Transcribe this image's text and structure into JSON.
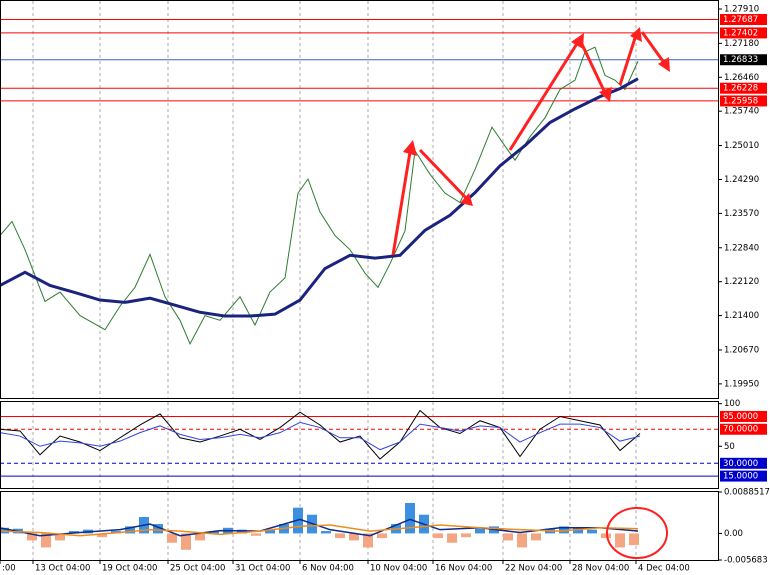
{
  "chart_data": [
    {
      "type": "line",
      "xlim": [
        0,
        718
      ],
      "ylim": [
        1.1965,
        1.2808
      ],
      "xticks": [
        {
          "value": 0,
          "label": ":00"
        },
        {
          "value": 33,
          "label": "13 Oct 04:00"
        },
        {
          "value": 100,
          "label": "19 Oct 04:00"
        },
        {
          "value": 168,
          "label": "25 Oct 04:00"
        },
        {
          "value": 233,
          "label": "31 Oct 04:00"
        },
        {
          "value": 300,
          "label": "6 Nov 04:00"
        },
        {
          "value": 368,
          "label": "10 Nov 04:00"
        },
        {
          "value": 433,
          "label": "16 Nov 04:00"
        },
        {
          "value": 503,
          "label": "22 Nov 04:00"
        },
        {
          "value": 570,
          "label": "28 Nov 04:00"
        },
        {
          "value": 636,
          "label": "4 Dec 04:00"
        }
      ],
      "yticks": [
        {
          "value": 1.2791,
          "label": "1.27910"
        },
        {
          "value": 1.2718,
          "label": "1.27180"
        },
        {
          "value": 1.2646,
          "label": "1.26460"
        },
        {
          "value": 1.2574,
          "label": "1.25740"
        },
        {
          "value": 1.2501,
          "label": "1.25010"
        },
        {
          "value": 1.2429,
          "label": "1.24290"
        },
        {
          "value": 1.2357,
          "label": "1.23570"
        },
        {
          "value": 1.2284,
          "label": "1.22840"
        },
        {
          "value": 1.2212,
          "label": "1.22120"
        },
        {
          "value": 1.214,
          "label": "1.21400"
        },
        {
          "value": 1.2067,
          "label": "1.20670"
        },
        {
          "value": 1.1995,
          "label": "1.19950"
        }
      ],
      "levels": [
        {
          "value": 1.27687,
          "color": "#ff0000"
        },
        {
          "value": 1.27402,
          "color": "#ff0000"
        },
        {
          "value": 1.26833,
          "color": "#000000"
        },
        {
          "value": 1.26228,
          "color": "#ff0000"
        },
        {
          "value": 1.25958,
          "color": "#ff0000"
        }
      ],
      "series": [
        {
          "color": "#2e7d32",
          "x": [
            0,
            12,
            25,
            45,
            60,
            80,
            105,
            120,
            135,
            150,
            165,
            180,
            190,
            205,
            220,
            240,
            255,
            270,
            285,
            298,
            308,
            320,
            335,
            350,
            365,
            378,
            390,
            405,
            415,
            430,
            445,
            460,
            475,
            492,
            505,
            515,
            530,
            545,
            560,
            575,
            585,
            595,
            605,
            615,
            625,
            638
          ],
          "values": [
            1.231,
            1.234,
            1.228,
            1.217,
            1.219,
            1.214,
            1.211,
            1.216,
            1.22,
            1.227,
            1.218,
            1.213,
            1.208,
            1.214,
            1.213,
            1.218,
            1.212,
            1.219,
            1.222,
            1.24,
            1.243,
            1.236,
            1.231,
            1.228,
            1.223,
            1.22,
            1.225,
            1.232,
            1.249,
            1.244,
            1.24,
            1.238,
            1.245,
            1.254,
            1.25,
            1.247,
            1.252,
            1.256,
            1.262,
            1.264,
            1.27,
            1.271,
            1.265,
            1.264,
            1.262,
            1.268
          ]
        },
        {
          "color": "#1a237e",
          "x": [
            0,
            25,
            50,
            75,
            100,
            125,
            150,
            175,
            200,
            225,
            250,
            275,
            300,
            325,
            350,
            375,
            400,
            425,
            450,
            475,
            500,
            525,
            550,
            575,
            600,
            620,
            638
          ],
          "values": [
            1.2204,
            1.2232,
            1.2204,
            1.2189,
            1.2173,
            1.2168,
            1.2177,
            1.2162,
            1.2147,
            1.2139,
            1.2139,
            1.2143,
            1.2173,
            1.224,
            1.2268,
            1.2262,
            1.2268,
            1.2321,
            1.2353,
            1.2401,
            1.2458,
            1.2501,
            1.255,
            1.2579,
            1.2605,
            1.2622,
            1.2643
          ]
        }
      ]
    },
    {
      "type": "line",
      "xlim": [
        0,
        718
      ],
      "ylim": [
        1,
        102
      ],
      "yticks": [
        100,
        50
      ],
      "levels": [
        {
          "value": 85,
          "label": "85.0000",
          "color": "#ff0000",
          "dashed": false
        },
        {
          "value": 70,
          "label": "70.0000",
          "color": "#ff0000",
          "dashed": true
        },
        {
          "value": 30,
          "label": "30.0000",
          "color": "#0000cc",
          "dashed": true
        },
        {
          "value": 15,
          "label": "15.0000",
          "color": "#0000cc",
          "dashed": false
        }
      ],
      "series": [
        {
          "color": "#000000",
          "x": [
            0,
            20,
            40,
            60,
            80,
            100,
            120,
            140,
            160,
            180,
            200,
            220,
            240,
            260,
            280,
            300,
            320,
            340,
            360,
            380,
            400,
            420,
            440,
            460,
            480,
            500,
            520,
            540,
            560,
            580,
            600,
            620,
            640
          ],
          "values": [
            70,
            68,
            40,
            62,
            55,
            45,
            60,
            75,
            88,
            60,
            55,
            62,
            70,
            58,
            72,
            90,
            75,
            55,
            62,
            35,
            55,
            92,
            72,
            65,
            80,
            72,
            38,
            70,
            85,
            80,
            75,
            45,
            65
          ]
        },
        {
          "color": "#3344dd",
          "x": [
            0,
            20,
            40,
            60,
            80,
            100,
            120,
            140,
            160,
            180,
            200,
            220,
            240,
            260,
            280,
            300,
            320,
            340,
            360,
            380,
            400,
            420,
            440,
            460,
            480,
            500,
            520,
            540,
            560,
            580,
            600,
            620,
            640
          ],
          "values": [
            66,
            62,
            50,
            56,
            54,
            50,
            56,
            66,
            74,
            64,
            58,
            60,
            64,
            60,
            66,
            78,
            72,
            60,
            60,
            46,
            55,
            76,
            72,
            68,
            74,
            72,
            55,
            66,
            76,
            76,
            72,
            56,
            62
          ]
        }
      ]
    },
    {
      "type": "bar",
      "xlim": [
        0,
        718
      ],
      "ylim": [
        -0.005683,
        0.0088517
      ],
      "yticks": [
        0.0088517,
        {
          "value": 0,
          "label": "0.00"
        },
        -0.005683
      ],
      "positive_color": "#3d8fe0",
      "negative_color": "#f4a582",
      "x": [
        4,
        18,
        32,
        46,
        60,
        74,
        88,
        102,
        116,
        130,
        144,
        158,
        172,
        186,
        200,
        214,
        228,
        242,
        256,
        270,
        284,
        298,
        312,
        326,
        340,
        354,
        368,
        382,
        396,
        410,
        424,
        438,
        452,
        466,
        480,
        494,
        508,
        522,
        536,
        550,
        564,
        578,
        592,
        606,
        620,
        634
      ],
      "values": [
        0.0012,
        0.001,
        -0.0015,
        -0.003,
        -0.0015,
        0.0005,
        0.0008,
        -0.0008,
        0.0005,
        0.0015,
        0.0035,
        0.002,
        -0.002,
        -0.0035,
        -0.0015,
        0.0005,
        0.0012,
        0.0008,
        -0.0005,
        0.0008,
        0.002,
        0.0055,
        0.004,
        0.0005,
        -0.001,
        -0.0015,
        -0.003,
        -0.001,
        0.002,
        0.0065,
        0.004,
        -0.001,
        -0.002,
        -0.0008,
        0.001,
        0.0015,
        -0.0015,
        -0.003,
        -0.0015,
        0.001,
        0.0015,
        0.0012,
        0.0008,
        -0.001,
        -0.003,
        -0.0025
      ],
      "lines": [
        {
          "color": "#0d2c8c",
          "x": [
            0,
            40,
            80,
            120,
            150,
            180,
            220,
            260,
            300,
            330,
            370,
            410,
            440,
            480,
            520,
            560,
            600,
            638
          ],
          "values": [
            0.0012,
            -0.0005,
            0.0002,
            0.0008,
            0.002,
            -0.0005,
            0.0006,
            0.0005,
            0.003,
            0.0008,
            -0.0005,
            0.003,
            0.0008,
            0.0012,
            0.0002,
            0.0012,
            0.0012,
            0.0005
          ]
        },
        {
          "color": "#f08c1a",
          "x": [
            0,
            40,
            80,
            120,
            150,
            180,
            220,
            260,
            300,
            330,
            370,
            410,
            440,
            480,
            520,
            560,
            600,
            638
          ],
          "values": [
            0.0005,
            0.0002,
            -0.0005,
            0.0002,
            0.0008,
            0.0005,
            -0.0002,
            0.0005,
            0.0015,
            0.0018,
            0.0005,
            0.0012,
            0.0018,
            0.0012,
            0.0008,
            0.0005,
            0.0012,
            0.001
          ]
        }
      ]
    }
  ]
}
